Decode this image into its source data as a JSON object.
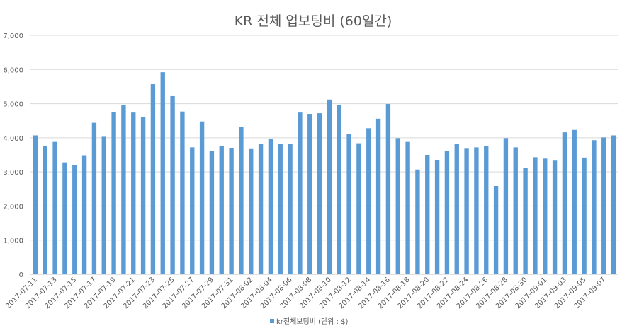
{
  "chart_data": {
    "type": "bar",
    "title": "KR 전체 업보팅비 (60일간)",
    "xlabel": "",
    "ylabel": "",
    "ylim": [
      0,
      7000
    ],
    "yticks": [
      0,
      1000,
      2000,
      3000,
      4000,
      5000,
      6000,
      7000
    ],
    "ytick_labels": [
      "0",
      "1,000",
      "2,000",
      "3,000",
      "4,000",
      "5,000",
      "6,000",
      "7,000"
    ],
    "grid": true,
    "legend_position": "bottom",
    "categories": [
      "2017-07-11",
      "2017-07-12",
      "2017-07-13",
      "2017-07-14",
      "2017-07-15",
      "2017-07-16",
      "2017-07-17",
      "2017-07-18",
      "2017-07-19",
      "2017-07-20",
      "2017-07-21",
      "2017-07-22",
      "2017-07-23",
      "2017-07-24",
      "2017-07-25",
      "2017-07-26",
      "2017-07-27",
      "2017-07-28",
      "2017-07-29",
      "2017-07-30",
      "2017-07-31",
      "2017-08-01",
      "2017-08-02",
      "2017-08-03",
      "2017-08-04",
      "2017-08-05",
      "2017-08-06",
      "2017-08-07",
      "2017-08-08",
      "2017-08-09",
      "2017-08-10",
      "2017-08-11",
      "2017-08-12",
      "2017-08-13",
      "2017-08-14",
      "2017-08-15",
      "2017-08-16",
      "2017-08-17",
      "2017-08-18",
      "2017-08-19",
      "2017-08-20",
      "2017-08-21",
      "2017-08-22",
      "2017-08-23",
      "2017-08-24",
      "2017-08-25",
      "2017-08-26",
      "2017-08-27",
      "2017-08-28",
      "2017-08-29",
      "2017-08-30",
      "2017-08-31",
      "2017-09-01",
      "2017-09-02",
      "2017-09-03",
      "2017-09-04",
      "2017-09-05",
      "2017-09-06",
      "2017-09-07",
      "2017-09-08"
    ],
    "visible_xtick_labels": [
      "2017-07-11",
      "2017-07-13",
      "2017-07-15",
      "2017-07-17",
      "2017-07-19",
      "2017-07-21",
      "2017-07-23",
      "2017-07-25",
      "2017-07-27",
      "2017-07-29",
      "2017-07-31",
      "2017-08-02",
      "2017-08-04",
      "2017-08-06",
      "2017-08-08",
      "2017-08-10",
      "2017-08-12",
      "2017-08-14",
      "2017-08-16",
      "2017-08-18",
      "2017-08-20",
      "2017-08-22",
      "2017-08-24",
      "2017-08-26",
      "2017-08-28",
      "2017-08-30",
      "2017-09-01",
      "2017-09-03",
      "2017-09-05",
      "2017-09-07"
    ],
    "series": [
      {
        "name": "kr전체보팅비 (단위 : $)",
        "color": "#5b9bd5",
        "values": [
          4070,
          3760,
          3880,
          3280,
          3200,
          3490,
          4440,
          4030,
          4760,
          4950,
          4740,
          4610,
          5570,
          5920,
          5220,
          4770,
          3720,
          4480,
          3610,
          3760,
          3700,
          4320,
          3670,
          3830,
          3960,
          3830,
          3830,
          4740,
          4700,
          4720,
          5120,
          4960,
          4110,
          3840,
          4280,
          4560,
          4990,
          3990,
          3880,
          3070,
          3500,
          3340,
          3620,
          3820,
          3680,
          3720,
          3760,
          2590,
          3990,
          3720,
          3110,
          3430,
          3390,
          3330,
          4160,
          4230,
          3420,
          3930,
          4010,
          4070
        ]
      }
    ]
  }
}
